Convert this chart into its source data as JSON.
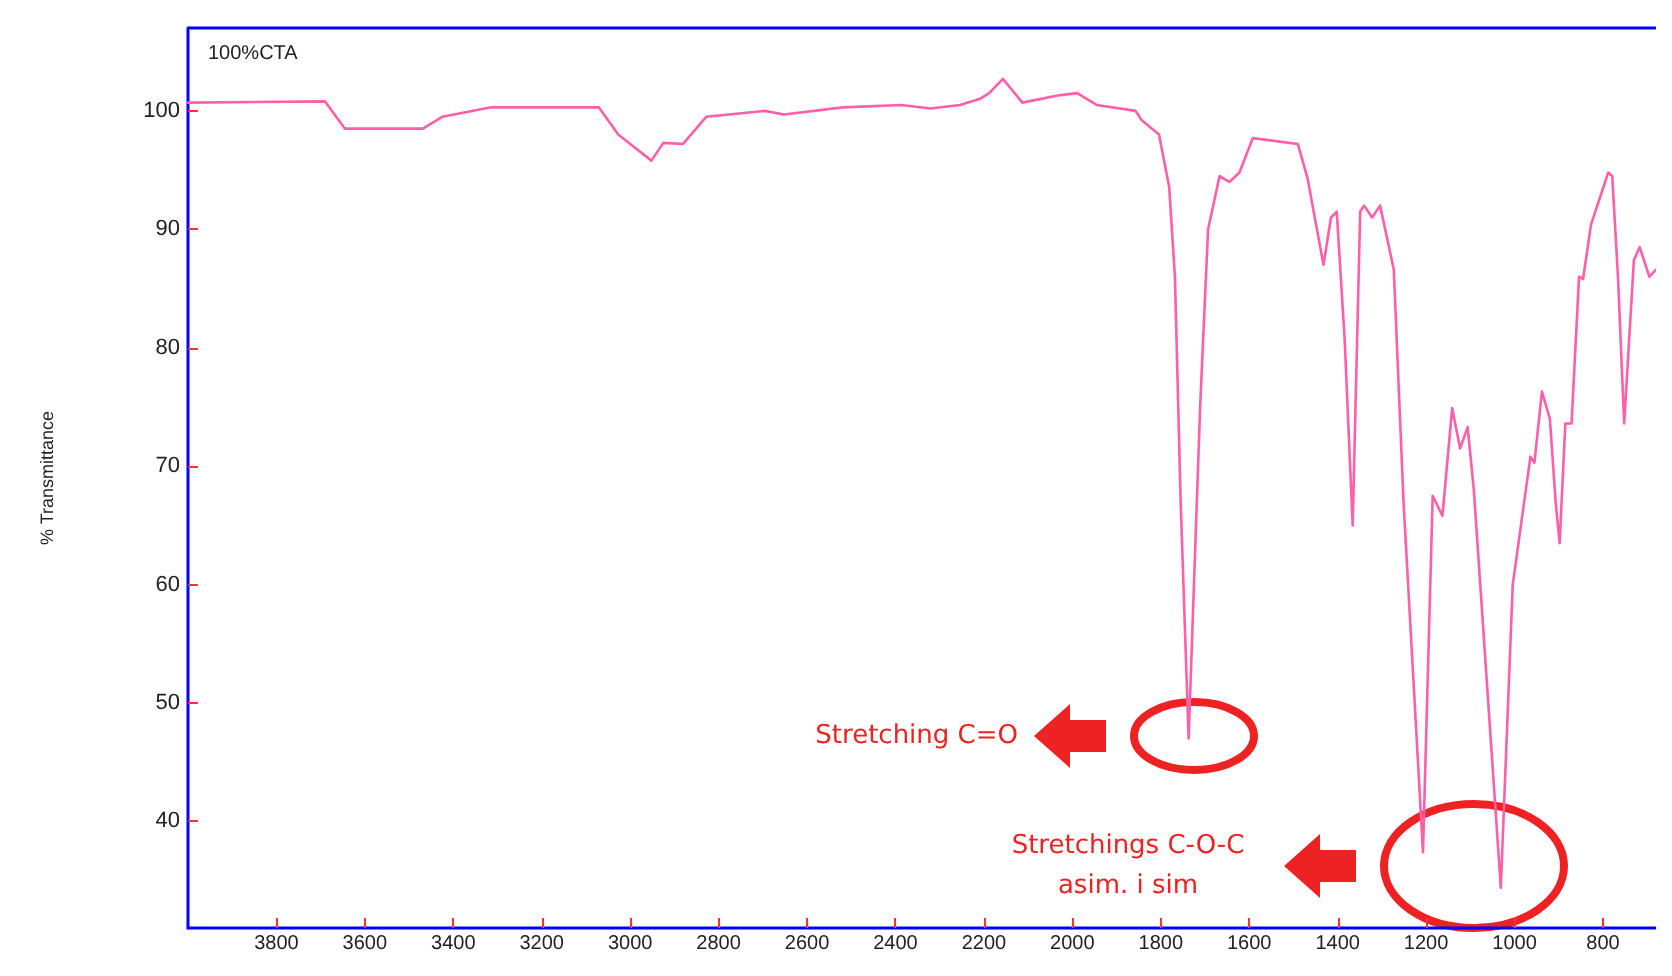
{
  "chart_data": {
    "type": "line",
    "ylabel": "% Transmittance",
    "annotations": [
      "100%CTA",
      "Stretching C=O",
      "Stretchings C-O-C\nasim. i sim"
    ],
    "x": [
      4000,
      3690,
      3645,
      3469,
      3425,
      3314,
      3071,
      3027,
      2952,
      2925,
      2881,
      2828,
      2696,
      2652,
      2519,
      2387,
      2320,
      2254,
      2210,
      2188,
      2157,
      2113,
      2033,
      1989,
      1945,
      1857,
      1843,
      1804,
      1781,
      1768,
      1755,
      1737,
      1711,
      1693,
      1667,
      1645,
      1622,
      1592,
      1490,
      1468,
      1432,
      1415,
      1402,
      1384,
      1366,
      1349,
      1340,
      1322,
      1304,
      1273,
      1251,
      1207,
      1185,
      1163,
      1141,
      1123,
      1106,
      1092,
      1031,
      1004,
      964,
      955,
      938,
      920,
      907,
      898,
      885,
      871,
      854,
      845,
      827,
      788,
      779,
      766,
      752,
      730,
      717,
      695,
      680
    ],
    "series": [
      {
        "color": "#ff5fa8",
        "values": [
          100.7,
          100.8,
          98.5,
          98.5,
          99.5,
          100.3,
          100.3,
          98,
          95.8,
          97.3,
          97.2,
          99.5,
          100,
          99.7,
          100.3,
          100.5,
          100.2,
          100.5,
          101,
          101.5,
          102.7,
          100.7,
          101.3,
          101.5,
          100.5,
          100,
          99.2,
          98,
          93.6,
          86,
          67,
          47,
          75,
          90,
          94.5,
          94,
          94.8,
          97.7,
          97.2,
          94.3,
          87,
          91,
          91.5,
          80.6,
          65,
          91.5,
          92,
          91,
          92,
          86.6,
          67,
          37.4,
          67.5,
          65.8,
          74.9,
          71.5,
          73.3,
          68,
          34.4,
          60,
          70.8,
          70.3,
          76.3,
          74,
          67,
          63.5,
          73.6,
          73.6,
          86,
          85.8,
          90.4,
          94.8,
          94.5,
          86,
          73.6,
          87.4,
          88.5,
          86,
          86.6
        ]
      }
    ],
    "xlim": [
      4000,
      680
    ],
    "xticks": [
      3800,
      3600,
      3400,
      3200,
      3000,
      2800,
      2600,
      2400,
      2200,
      2000,
      1800,
      1600,
      1400,
      1200,
      1000,
      800
    ],
    "ylim": [
      31,
      107
    ],
    "yticks": [
      40,
      50,
      60,
      70,
      80,
      90,
      100
    ],
    "grid": false,
    "marker": "none",
    "line_style": "solid"
  }
}
